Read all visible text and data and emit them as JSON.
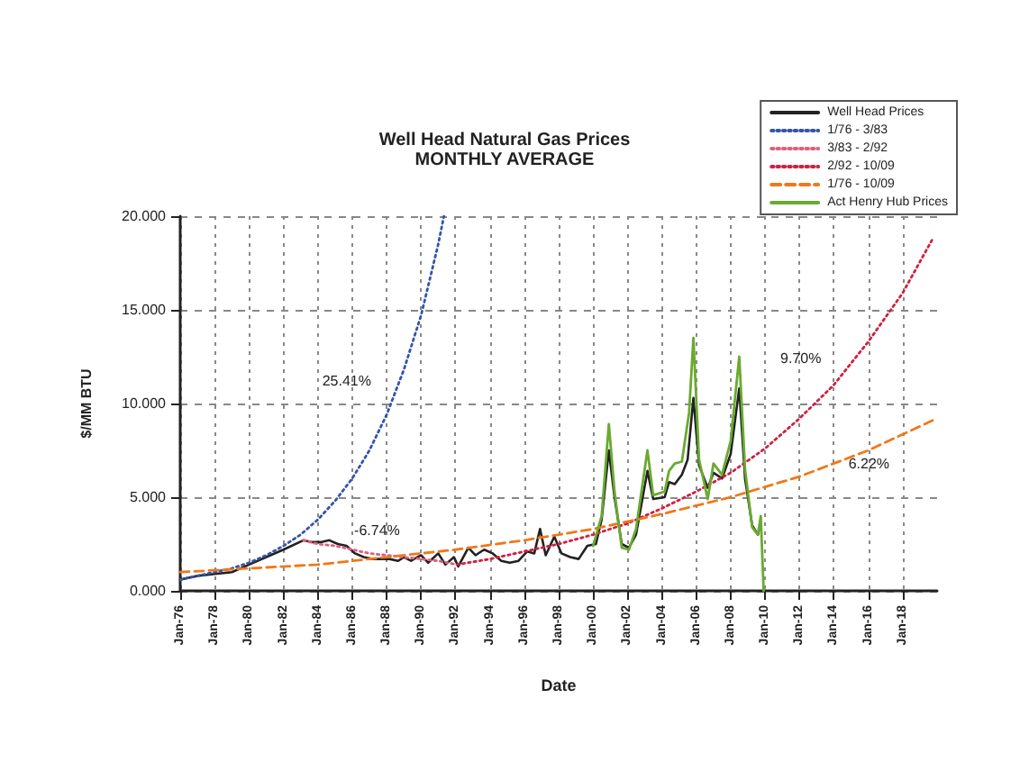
{
  "chart_data": {
    "type": "line",
    "title": "Well Head Natural Gas Prices",
    "subtitle": "MONTHLY AVERAGE",
    "xlabel": "Date",
    "ylabel": "$/MM BTU",
    "xlim": [
      "1976-01",
      "2020-01"
    ],
    "xticks": [
      {
        "value": "1976-01",
        "label": "Jan-76"
      },
      {
        "value": "1978-01",
        "label": "Jan-78"
      },
      {
        "value": "1980-01",
        "label": "Jan-80"
      },
      {
        "value": "1982-01",
        "label": "Jan-82"
      },
      {
        "value": "1984-01",
        "label": "Jan-84"
      },
      {
        "value": "1986-01",
        "label": "Jan-86"
      },
      {
        "value": "1988-01",
        "label": "Jan-88"
      },
      {
        "value": "1990-01",
        "label": "Jan-90"
      },
      {
        "value": "1992-01",
        "label": "Jan-92"
      },
      {
        "value": "1994-01",
        "label": "Jan-94"
      },
      {
        "value": "1996-01",
        "label": "Jan-96"
      },
      {
        "value": "1998-01",
        "label": "Jan-98"
      },
      {
        "value": "2000-01",
        "label": "Jan-00"
      },
      {
        "value": "2002-01",
        "label": "Jan-02"
      },
      {
        "value": "2004-01",
        "label": "Jan-04"
      },
      {
        "value": "2006-01",
        "label": "Jan-06"
      },
      {
        "value": "2008-01",
        "label": "Jan-08"
      },
      {
        "value": "2010-01",
        "label": "Jan-10"
      },
      {
        "value": "2012-01",
        "label": "Jan-12"
      },
      {
        "value": "2014-01",
        "label": "Jan-14"
      },
      {
        "value": "2016-01",
        "label": "Jan-16"
      },
      {
        "value": "2018-01",
        "label": "Jan-18"
      }
    ],
    "ylim": [
      0,
      20
    ],
    "yticks": [
      {
        "value": 0,
        "label": "0.000"
      },
      {
        "value": 5,
        "label": "5.000"
      },
      {
        "value": 10,
        "label": "10.000"
      },
      {
        "value": 15,
        "label": "15.000"
      },
      {
        "value": 20,
        "label": "20.000"
      }
    ],
    "grid": true,
    "legend": "top right",
    "marker": "none",
    "series": [
      {
        "name": "Well Head Prices",
        "color": "#222222",
        "line_style": "solid",
        "x": [
          "1976-01",
          "1977-01",
          "1978-01",
          "1979-01",
          "1980-01",
          "1981-01",
          "1982-01",
          "1983-03",
          "1983-09",
          "1984-03",
          "1984-09",
          "1985-03",
          "1985-09",
          "1986-03",
          "1986-09",
          "1987-03",
          "1987-09",
          "1988-03",
          "1988-09",
          "1989-01",
          "1989-06",
          "1990-01",
          "1990-06",
          "1991-01",
          "1991-06",
          "1991-12",
          "1992-03",
          "1992-10",
          "1993-03",
          "1993-09",
          "1994-03",
          "1994-09",
          "1995-03",
          "1995-09",
          "1996-03",
          "1996-08",
          "1996-12",
          "1997-04",
          "1997-10",
          "1998-03",
          "1998-09",
          "1999-03",
          "1999-09",
          "2000-03",
          "2000-07",
          "2000-12",
          "2001-04",
          "2001-09",
          "2002-02",
          "2002-07",
          "2003-03",
          "2003-07",
          "2004-03",
          "2004-06",
          "2004-10",
          "2005-03",
          "2005-07",
          "2005-11",
          "2006-03",
          "2006-09",
          "2007-01",
          "2007-07",
          "2008-01",
          "2008-07",
          "2008-11",
          "2009-04",
          "2009-08",
          "2009-10"
        ],
        "values": [
          0.6,
          0.8,
          0.9,
          1.0,
          1.4,
          1.8,
          2.2,
          2.7,
          2.6,
          2.6,
          2.7,
          2.5,
          2.4,
          2.0,
          1.8,
          1.7,
          1.7,
          1.7,
          1.6,
          1.8,
          1.6,
          1.9,
          1.5,
          2.0,
          1.4,
          1.8,
          1.3,
          2.3,
          1.9,
          2.2,
          2.0,
          1.6,
          1.5,
          1.6,
          2.1,
          2.0,
          3.3,
          1.9,
          2.9,
          2.0,
          1.8,
          1.7,
          2.4,
          2.5,
          3.8,
          7.5,
          5.0,
          2.5,
          2.3,
          3.0,
          6.4,
          4.9,
          5.0,
          5.8,
          5.7,
          6.2,
          7.0,
          10.3,
          6.7,
          5.5,
          6.3,
          6.0,
          7.3,
          10.8,
          6.0,
          3.5,
          3.0,
          3.6
        ]
      },
      {
        "name": "1/76 - 3/83",
        "color": "#3355aa",
        "line_style": "dotted",
        "x": [
          "1976-01",
          "1977-01",
          "1978-01",
          "1979-01",
          "1980-01",
          "1981-01",
          "1982-01",
          "1983-01",
          "1984-01",
          "1985-01",
          "1986-01",
          "1987-01",
          "1988-01",
          "1989-01",
          "1990-01",
          "1991-01",
          "1991-05"
        ],
        "values": [
          0.6,
          0.8,
          1.0,
          1.2,
          1.5,
          1.9,
          2.4,
          3.0,
          3.8,
          4.8,
          6.0,
          7.5,
          9.4,
          11.8,
          14.7,
          18.5,
          20.0
        ]
      },
      {
        "name": "3/83 - 2/92",
        "color": "#e0607a",
        "line_style": "dotted",
        "x": [
          "1983-03",
          "1984-01",
          "1985-01",
          "1986-01",
          "1987-01",
          "1988-01",
          "1989-01",
          "1990-01",
          "1991-01",
          "1992-02"
        ],
        "values": [
          2.7,
          2.5,
          2.4,
          2.2,
          2.0,
          1.9,
          1.8,
          1.7,
          1.6,
          1.4
        ]
      },
      {
        "name": "2/92 - 10/09",
        "color": "#d02040",
        "line_style": "dotted",
        "x": [
          "1992-02",
          "1994-01",
          "1996-01",
          "1998-01",
          "2000-01",
          "2002-01",
          "2004-01",
          "2006-01",
          "2008-01",
          "2010-01",
          "2012-01",
          "2014-01",
          "2016-01",
          "2018-01",
          "2019-10"
        ],
        "values": [
          1.4,
          1.7,
          2.1,
          2.5,
          3.0,
          3.6,
          4.4,
          5.3,
          6.3,
          7.6,
          9.2,
          11.0,
          13.3,
          15.9,
          18.8
        ]
      },
      {
        "name": "1/76 - 10/09",
        "color": "#f07818",
        "line_style": "dashed",
        "x": [
          "1976-01",
          "1980-01",
          "1984-01",
          "1988-01",
          "1992-01",
          "1996-01",
          "2000-01",
          "2004-01",
          "2008-01",
          "2012-01",
          "2016-01",
          "2019-10"
        ],
        "values": [
          1.0,
          1.2,
          1.4,
          1.8,
          2.2,
          2.7,
          3.3,
          4.1,
          5.0,
          6.1,
          7.5,
          9.1
        ]
      },
      {
        "name": "Act Henry Hub Prices",
        "color": "#6aaa30",
        "line_style": "solid",
        "x": [
          "2000-01",
          "2000-07",
          "2000-12",
          "2001-04",
          "2001-09",
          "2002-02",
          "2002-07",
          "2003-03",
          "2003-07",
          "2004-03",
          "2004-06",
          "2004-10",
          "2005-03",
          "2005-08",
          "2005-11",
          "2006-03",
          "2006-09",
          "2007-01",
          "2007-07",
          "2008-01",
          "2008-07",
          "2008-11",
          "2009-04",
          "2009-08",
          "2009-10",
          "2009-12"
        ],
        "values": [
          2.4,
          4.0,
          8.9,
          5.3,
          2.3,
          2.2,
          3.3,
          7.5,
          5.1,
          5.3,
          6.4,
          6.8,
          6.9,
          9.5,
          13.5,
          7.0,
          4.9,
          6.8,
          6.2,
          8.0,
          12.5,
          6.5,
          3.4,
          3.0,
          4.0,
          0.0
        ]
      }
    ],
    "annotations": [
      "25.41%",
      "-6.74%",
      "9.70%",
      "6.22%"
    ]
  }
}
